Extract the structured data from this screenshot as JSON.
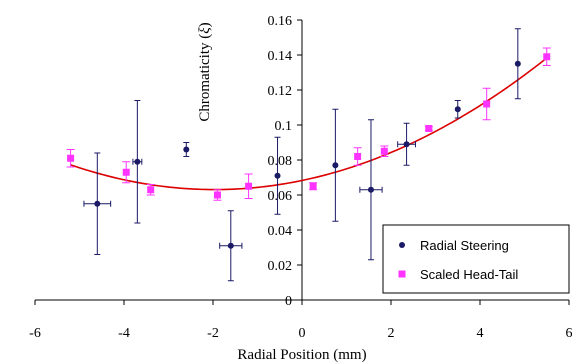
{
  "chart_data": {
    "type": "scatter",
    "xlabel": "Radial Position (mm)",
    "ylabel_main": "Chromaticity (",
    "ylabel_symbol": "ξ",
    "ylabel_close": ")",
    "xlim": [
      -6,
      6
    ],
    "ylim": [
      0,
      0.16
    ],
    "x_ticks": [
      -6,
      -4,
      -2,
      0,
      2,
      4,
      6
    ],
    "x_tick_labels": [
      "-6",
      "-4",
      "-2",
      "0",
      "2",
      "4",
      "6"
    ],
    "y_ticks": [
      0,
      0.02,
      0.04,
      0.06,
      0.08,
      0.1,
      0.12,
      0.14,
      0.16
    ],
    "y_tick_labels": [
      "0",
      "0.02",
      "0.04",
      "0.06",
      "0.08",
      "0.1",
      "0.12",
      "0.14",
      "0.16"
    ],
    "grid": false,
    "legend_position": "bottom-right",
    "colors": {
      "radial": "#1a1a66",
      "scaled": "#ff33ff",
      "fit": "#dd0000",
      "axis": "#000000"
    },
    "series": [
      {
        "name": "Radial Steering",
        "marker": "circle",
        "points": [
          {
            "x": -4.6,
            "y": 0.055,
            "yerr": 0.029,
            "xerr": 0.3
          },
          {
            "x": -3.7,
            "y": 0.079,
            "yerr": 0.035,
            "xerr": 0.1
          },
          {
            "x": -2.6,
            "y": 0.086,
            "yerr": 0.004,
            "xerr": 0.0
          },
          {
            "x": -1.6,
            "y": 0.031,
            "yerr": 0.02,
            "xerr": 0.25
          },
          {
            "x": -0.55,
            "y": 0.071,
            "yerr": 0.022,
            "xerr": 0.0
          },
          {
            "x": 0.75,
            "y": 0.077,
            "yerr": 0.032,
            "xerr": 0.0
          },
          {
            "x": 1.55,
            "y": 0.063,
            "yerr": 0.04,
            "xerr": 0.25
          },
          {
            "x": 2.35,
            "y": 0.089,
            "yerr": 0.012,
            "xerr": 0.2
          },
          {
            "x": 3.5,
            "y": 0.109,
            "yerr": 0.005,
            "xerr": 0.0
          },
          {
            "x": 4.85,
            "y": 0.135,
            "yerr": 0.02,
            "xerr": 0.0
          }
        ]
      },
      {
        "name": "Scaled Head-Tail",
        "marker": "square",
        "points": [
          {
            "x": -5.2,
            "y": 0.081,
            "yerr": 0.005
          },
          {
            "x": -3.95,
            "y": 0.073,
            "yerr": 0.006
          },
          {
            "x": -3.4,
            "y": 0.063,
            "yerr": 0.003
          },
          {
            "x": -1.9,
            "y": 0.06,
            "yerr": 0.003
          },
          {
            "x": -1.2,
            "y": 0.065,
            "yerr": 0.007
          },
          {
            "x": 0.25,
            "y": 0.065,
            "yerr": 0.002
          },
          {
            "x": 1.25,
            "y": 0.082,
            "yerr": 0.005
          },
          {
            "x": 1.85,
            "y": 0.085,
            "yerr": 0.003
          },
          {
            "x": 2.85,
            "y": 0.098,
            "yerr": 0.001
          },
          {
            "x": 4.15,
            "y": 0.112,
            "yerr": 0.009
          },
          {
            "x": 5.5,
            "y": 0.139,
            "yerr": 0.005
          }
        ]
      }
    ],
    "fit_curve": {
      "type": "polynomial",
      "coefficients": [
        0.0683,
        0.0053,
        0.00135
      ],
      "x_range": [
        -5.2,
        5.5
      ]
    }
  }
}
